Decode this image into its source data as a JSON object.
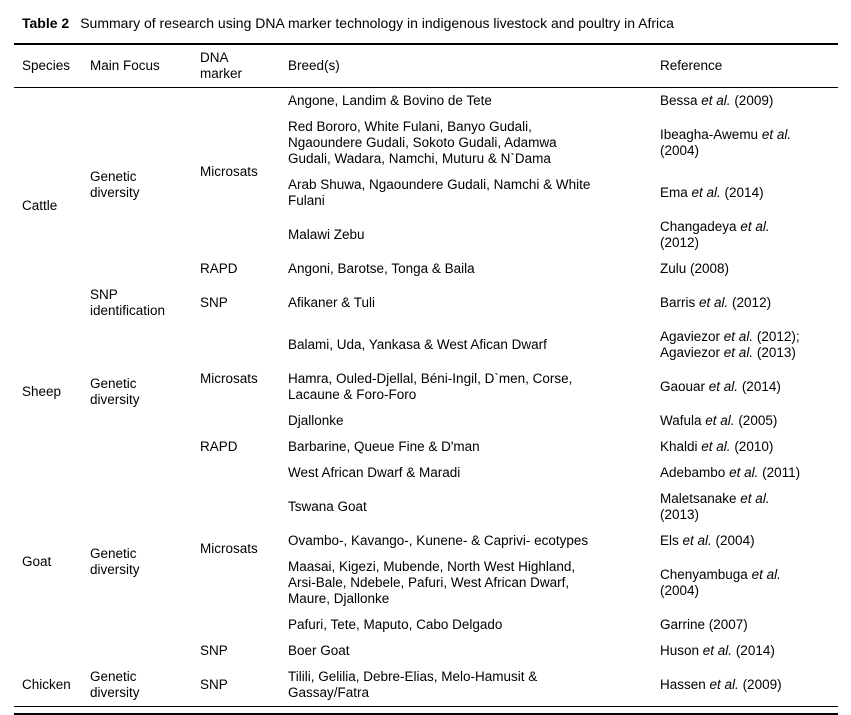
{
  "caption": {
    "label": "Table 2",
    "text": "Summary of research using DNA marker technology in indigenous livestock and poultry in Africa"
  },
  "columns": [
    "Species",
    "Main Focus",
    "DNA\nmarker",
    "Breed(s)",
    "Reference"
  ],
  "rows": [
    {
      "species": "Cattle",
      "focus": "Genetic\ndiversity",
      "marker": "Microsats",
      "breeds": "Angone, Landim & Bovino de Tete",
      "ref": [
        {
          "t": "Bessa "
        },
        {
          "t": "et al.",
          "i": true
        },
        {
          "t": " (2009)"
        }
      ]
    },
    {
      "breeds": "Red Bororo, White Fulani, Banyo Gudali,\nNgaoundere Gudali, Sokoto Gudali, Adamwa\nGudali, Wadara, Namchi, Muturu & N`Dama",
      "ref": [
        {
          "t": "Ibeagha-Awemu "
        },
        {
          "t": "et al.",
          "i": true
        },
        {
          "t": "\n(2004)"
        }
      ]
    },
    {
      "breeds": "Arab Shuwa, Ngaoundere Gudali, Namchi & White\nFulani",
      "ref": [
        {
          "t": "Ema "
        },
        {
          "t": "et al.",
          "i": true
        },
        {
          "t": " (2014)"
        }
      ]
    },
    {
      "breeds": "Malawi Zebu",
      "ref": [
        {
          "t": "Changadeya "
        },
        {
          "t": "et al.",
          "i": true
        },
        {
          "t": "\n(2012)"
        }
      ]
    },
    {
      "marker": "RAPD",
      "breeds": "Angoni, Barotse, Tonga & Baila",
      "ref": [
        {
          "t": "Zulu (2008)"
        }
      ]
    },
    {
      "focus": "SNP\nidentification",
      "marker": "SNP",
      "breeds": "Afikaner & Tuli",
      "ref": [
        {
          "t": "Barris "
        },
        {
          "t": "et al.",
          "i": true
        },
        {
          "t": " (2012)"
        }
      ]
    },
    {
      "species": "Sheep",
      "focus": "Genetic\ndiversity",
      "marker": "Microsats",
      "breeds": "Balami, Uda, Yankasa & West Afican Dwarf",
      "ref": [
        {
          "t": "Agaviezor "
        },
        {
          "t": "et al.",
          "i": true
        },
        {
          "t": " (2012);\nAgaviezor "
        },
        {
          "t": "et al.",
          "i": true
        },
        {
          "t": " (2013)"
        }
      ]
    },
    {
      "breeds": "Hamra, Ouled-Djellal, Béni-Ingil, D`men, Corse,\nLacaune & Foro-Foro",
      "ref": [
        {
          "t": "Gaouar "
        },
        {
          "t": "et al.",
          "i": true
        },
        {
          "t": " (2014)"
        }
      ]
    },
    {
      "breeds": "Djallonke",
      "ref": [
        {
          "t": "Wafula "
        },
        {
          "t": "et al.",
          "i": true
        },
        {
          "t": " (2005)"
        }
      ]
    },
    {
      "marker": "RAPD",
      "breeds": "Barbarine, Queue Fine & D'man",
      "ref": [
        {
          "t": "Khaldi "
        },
        {
          "t": "et al.",
          "i": true
        },
        {
          "t": " (2010)"
        }
      ]
    },
    {
      "species": "Goat",
      "focus": "Genetic\ndiversity",
      "marker": "Microsats",
      "breeds": "West African Dwarf & Maradi",
      "ref": [
        {
          "t": "Adebambo "
        },
        {
          "t": "et al.",
          "i": true
        },
        {
          "t": " (2011)"
        }
      ]
    },
    {
      "breeds": "Tswana Goat",
      "ref": [
        {
          "t": "Maletsanake "
        },
        {
          "t": "et al.",
          "i": true
        },
        {
          "t": "\n(2013)"
        }
      ]
    },
    {
      "breeds": "Ovambo-, Kavango-, Kunene- & Caprivi- ecotypes",
      "ref": [
        {
          "t": "Els "
        },
        {
          "t": "et al.",
          "i": true
        },
        {
          "t": " (2004)"
        }
      ]
    },
    {
      "breeds": "Maasai, Kigezi, Mubende, North West Highland,\nArsi-Bale, Ndebele, Pafuri, West African Dwarf,\nMaure, Djallonke",
      "ref": [
        {
          "t": "Chenyambuga "
        },
        {
          "t": "et al.",
          "i": true
        },
        {
          "t": "\n(2004)"
        }
      ]
    },
    {
      "breeds": "Pafuri, Tete, Maputo, Cabo Delgado",
      "ref": [
        {
          "t": "Garrine (2007)"
        }
      ]
    },
    {
      "marker": "SNP",
      "breeds": "Boer Goat",
      "ref": [
        {
          "t": "Huson "
        },
        {
          "t": "et al.",
          "i": true
        },
        {
          "t": " (2014)"
        }
      ]
    },
    {
      "species": "Chicken",
      "focus": "Genetic\ndiversity",
      "marker": "SNP",
      "breeds": "Tilili, Gelilia, Debre-Elias, Melo-Hamusit &\nGassay/Fatra",
      "ref": [
        {
          "t": "Hassen "
        },
        {
          "t": "et al.",
          "i": true
        },
        {
          "t": " (2009)"
        }
      ]
    }
  ]
}
